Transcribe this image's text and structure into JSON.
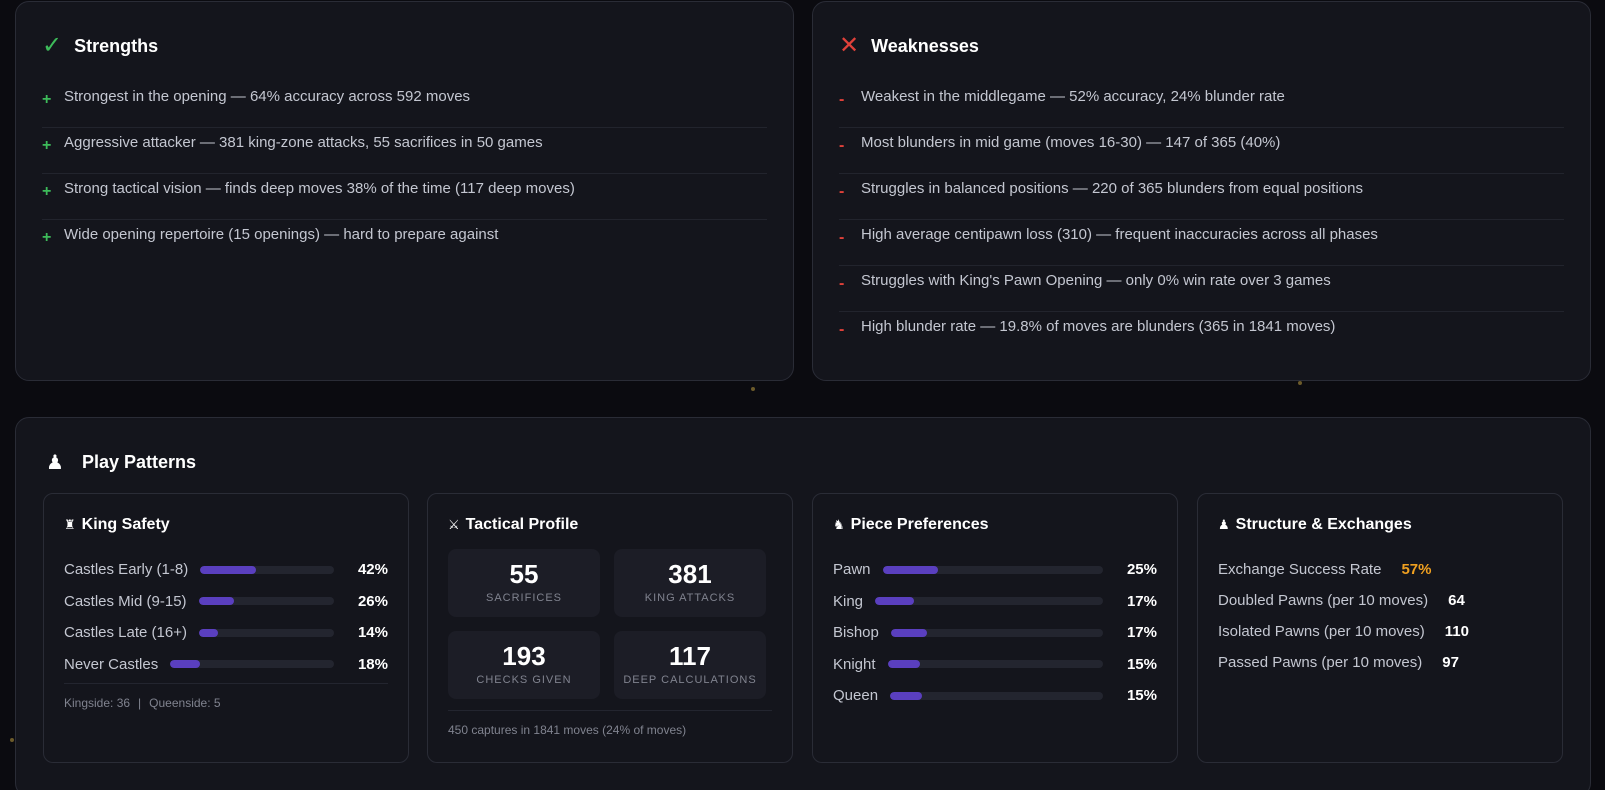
{
  "strengths": {
    "title": "Strengths",
    "items": [
      "Strongest in the opening — 64% accuracy across 592 moves",
      "Aggressive attacker — 381 king-zone attacks, 55 sacrifices in 50 games",
      "Strong tactical vision — finds deep moves 38% of the time (117 deep moves)",
      "Wide opening repertoire (15 openings) — hard to prepare against"
    ]
  },
  "weaknesses": {
    "title": "Weaknesses",
    "items": [
      "Weakest in the middlegame — 52% accuracy, 24% blunder rate",
      "Most blunders in mid game (moves 16-30) — 147 of 365 (40%)",
      "Struggles in balanced positions — 220 of 365 blunders from equal positions",
      "High average centipawn loss (310) — frequent inaccuracies across all phases",
      "Struggles with King's Pawn Opening — only 0% win rate over 3 games",
      "High blunder rate — 19.8% of moves are blunders (365 in 1841 moves)"
    ]
  },
  "patterns": {
    "title": "Play Patterns",
    "king_safety": {
      "title": "King Safety",
      "rows": [
        {
          "label": "Castles Early (1-8)",
          "pct": "42%",
          "value": 42
        },
        {
          "label": "Castles Mid (9-15)",
          "pct": "26%",
          "value": 26
        },
        {
          "label": "Castles Late (16+)",
          "pct": "14%",
          "value": 14
        },
        {
          "label": "Never Castles",
          "pct": "18%",
          "value": 18
        }
      ],
      "kingside": "Kingside: 36",
      "queenside": "Queenside: 5"
    },
    "tactical": {
      "title": "Tactical Profile",
      "stats": [
        {
          "num": "55",
          "cap": "SACRIFICES"
        },
        {
          "num": "381",
          "cap": "KING ATTACKS"
        },
        {
          "num": "193",
          "cap": "CHECKS GIVEN"
        },
        {
          "num": "117",
          "cap": "DEEP CALCULATIONS"
        }
      ],
      "footer": "450 captures in 1841 moves (24% of moves)"
    },
    "pieces": {
      "title": "Piece Preferences",
      "rows": [
        {
          "label": "Pawn",
          "pct": "25%",
          "value": 25
        },
        {
          "label": "King",
          "pct": "17%",
          "value": 17
        },
        {
          "label": "Bishop",
          "pct": "17%",
          "value": 17
        },
        {
          "label": "Knight",
          "pct": "15%",
          "value": 15
        },
        {
          "label": "Queen",
          "pct": "15%",
          "value": 15
        }
      ]
    },
    "structure": {
      "title": "Structure & Exchanges",
      "rows": [
        {
          "label": "Exchange Success Rate",
          "value": "57%"
        },
        {
          "label": "Doubled Pawns (per 10 moves)",
          "value": "64"
        },
        {
          "label": "Isolated Pawns (per 10 moves)",
          "value": "110"
        },
        {
          "label": "Passed Pawns (per 10 moves)",
          "value": "97"
        }
      ]
    }
  },
  "colors": {
    "accent_bar": "#5a3fbf",
    "positive": "#3dbb5a",
    "negative": "#e0413a",
    "highlight": "#f0a020"
  },
  "icons": {
    "strengths": "check-icon",
    "weaknesses": "x-icon",
    "patterns": "pawn-icon",
    "king_safety": "rook-icon",
    "tactical": "crossed-swords-icon",
    "pieces": "knight-icon",
    "structure": "pawn-icon"
  }
}
